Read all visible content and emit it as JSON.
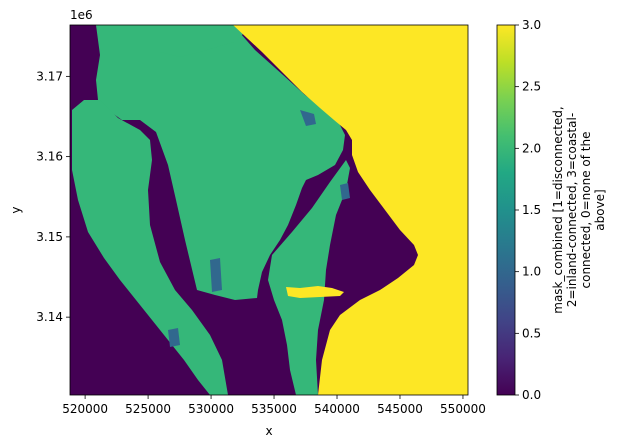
{
  "chart_data": {
    "type": "heatmap",
    "xlabel": "x",
    "ylabel": "y",
    "y_offset_label": "1e6",
    "xlim": [
      518800,
      550400
    ],
    "ylim": [
      3130300,
      3176400
    ],
    "x_ticks": [
      {
        "value": 520000,
        "label": "520000"
      },
      {
        "value": 525000,
        "label": "525000"
      },
      {
        "value": 530000,
        "label": "530000"
      },
      {
        "value": 535000,
        "label": "535000"
      },
      {
        "value": 540000,
        "label": "540000"
      },
      {
        "value": 545000,
        "label": "545000"
      },
      {
        "value": 550000,
        "label": "550000"
      }
    ],
    "y_ticks": [
      {
        "value": 3140000,
        "label": "3.14"
      },
      {
        "value": 3150000,
        "label": "3.15"
      },
      {
        "value": 3160000,
        "label": "3.16"
      },
      {
        "value": 3170000,
        "label": "3.17"
      }
    ],
    "colorbar": {
      "label_lines": [
        "mask_combined [1=disconnected,",
        "2=inland-connected, 3=coastal-",
        "connected, 0=none of the",
        "above]"
      ],
      "range": [
        0,
        3
      ],
      "colormap": "viridis",
      "ticks": [
        {
          "value": 0.0,
          "label": "0.0"
        },
        {
          "value": 0.5,
          "label": "0.5"
        },
        {
          "value": 1.0,
          "label": "1.0"
        },
        {
          "value": 1.5,
          "label": "1.5"
        },
        {
          "value": 2.0,
          "label": "2.0"
        },
        {
          "value": 2.5,
          "label": "2.5"
        },
        {
          "value": 3.0,
          "label": "3.0"
        }
      ]
    },
    "category_colors": {
      "0": "#440154",
      "1": "#31688e",
      "2": "#35b779",
      "3": "#fde725"
    },
    "grid": false,
    "legend": "colorbar-right"
  }
}
